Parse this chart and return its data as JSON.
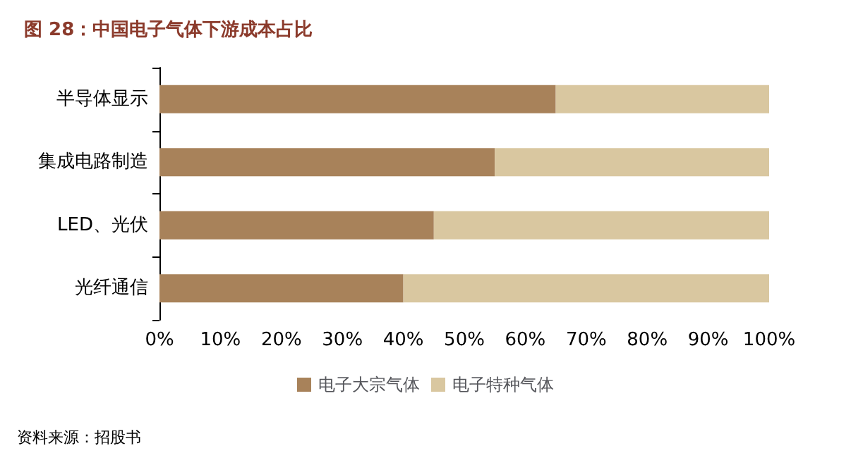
{
  "chart_data": {
    "type": "bar",
    "orientation": "horizontal",
    "stacked": true,
    "title": "图 28：中国电子气体下游成本占比",
    "categories": [
      "半导体显示",
      "集成电路制造",
      "LED、光伏",
      "光纤通信"
    ],
    "series": [
      {
        "name": "电子大宗气体",
        "color": "#a8825a",
        "values": [
          65,
          55,
          45,
          40
        ]
      },
      {
        "name": "电子特种气体",
        "color": "#d9c7a0",
        "values": [
          35,
          45,
          55,
          60
        ]
      }
    ],
    "xlim": [
      0,
      100
    ],
    "xticks": [
      {
        "value": 0,
        "label": "0%"
      },
      {
        "value": 10,
        "label": "10%"
      },
      {
        "value": 20,
        "label": "20%"
      },
      {
        "value": 30,
        "label": "30%"
      },
      {
        "value": 40,
        "label": "40%"
      },
      {
        "value": 50,
        "label": "50%"
      },
      {
        "value": 60,
        "label": "60%"
      },
      {
        "value": 70,
        "label": "70%"
      },
      {
        "value": 80,
        "label": "80%"
      },
      {
        "value": 90,
        "label": "90%"
      },
      {
        "value": 100,
        "label": "100%"
      }
    ],
    "grid": false,
    "legend": "bottom",
    "annotations": [
      "资料来源：招股书"
    ]
  }
}
